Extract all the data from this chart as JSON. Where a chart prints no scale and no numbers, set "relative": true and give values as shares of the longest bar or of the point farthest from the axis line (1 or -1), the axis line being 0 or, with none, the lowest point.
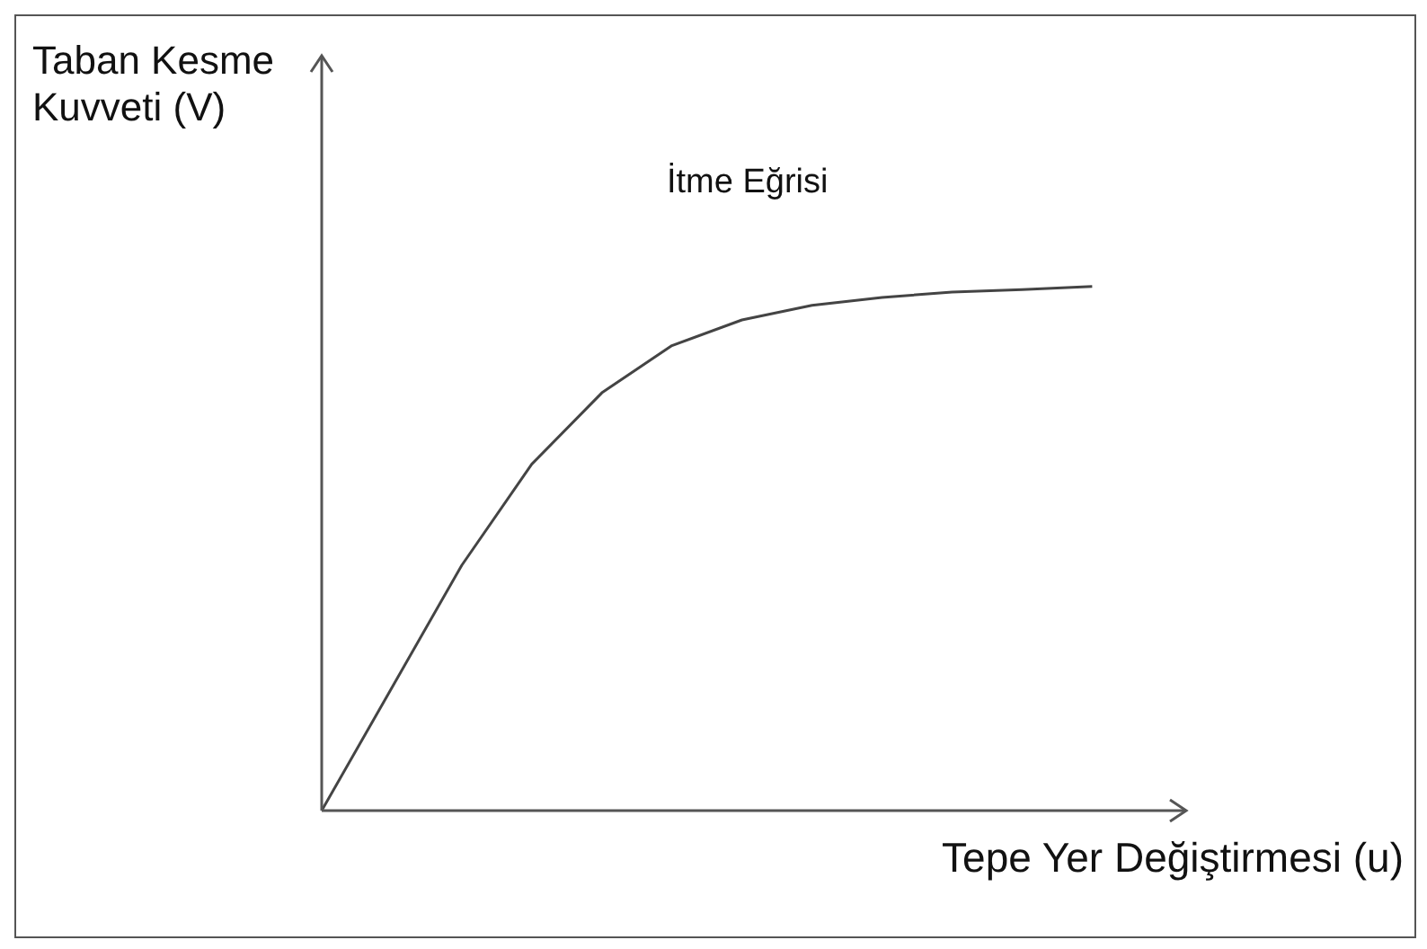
{
  "chart_data": {
    "type": "line",
    "title": "İtme Eğrisi",
    "xlabel": "Tepe Yer Değiştirmesi (u)",
    "ylabel": "Taban Kesme\nKuvveti (V)",
    "relative": true,
    "marker": "none",
    "grid": false,
    "legend": false,
    "categories": [
      null,
      null,
      null,
      null,
      null,
      null,
      null,
      null,
      null,
      null,
      null,
      null
    ],
    "series": [
      {
        "color": "#444444",
        "values": [
          0,
          0.234,
          0.468,
          0.661,
          0.797,
          0.887,
          0.936,
          0.964,
          0.979,
          0.989,
          0.994,
          1
        ]
      }
    ]
  }
}
